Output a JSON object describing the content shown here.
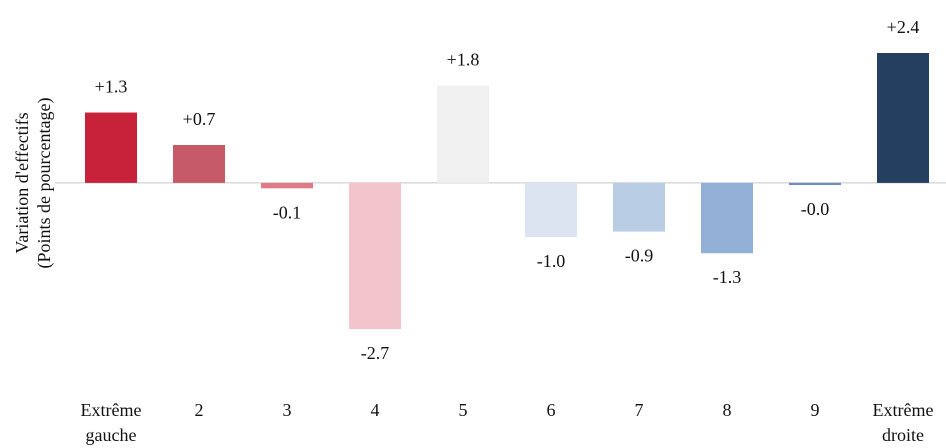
{
  "chart_data": {
    "type": "bar",
    "ylabel": [
      "Variation d'effectifs",
      "(Points de pourcentage)"
    ],
    "categories": [
      "Extrême gauche",
      "2",
      "3",
      "4",
      "5",
      "6",
      "7",
      "8",
      "9",
      "Extrême droite"
    ],
    "values": [
      1.3,
      0.7,
      -0.1,
      -2.7,
      1.8,
      -1.0,
      -0.9,
      -1.3,
      -0.04,
      2.4
    ],
    "value_labels": [
      "+1.3",
      "+0.7",
      "-0.1",
      "-2.7",
      "+1.8",
      "-1.0",
      "-0.9",
      "-1.3",
      "-0.0",
      "+2.4"
    ],
    "colors": [
      "#c8223a",
      "#c65a68",
      "#e07a86",
      "#f2c4cb",
      "#f0f0f0",
      "#dbe4f0",
      "#b9cde5",
      "#93b1d6",
      "#6f8fb8",
      "#243f60"
    ],
    "zero_line_color": "#c8c8c8"
  }
}
